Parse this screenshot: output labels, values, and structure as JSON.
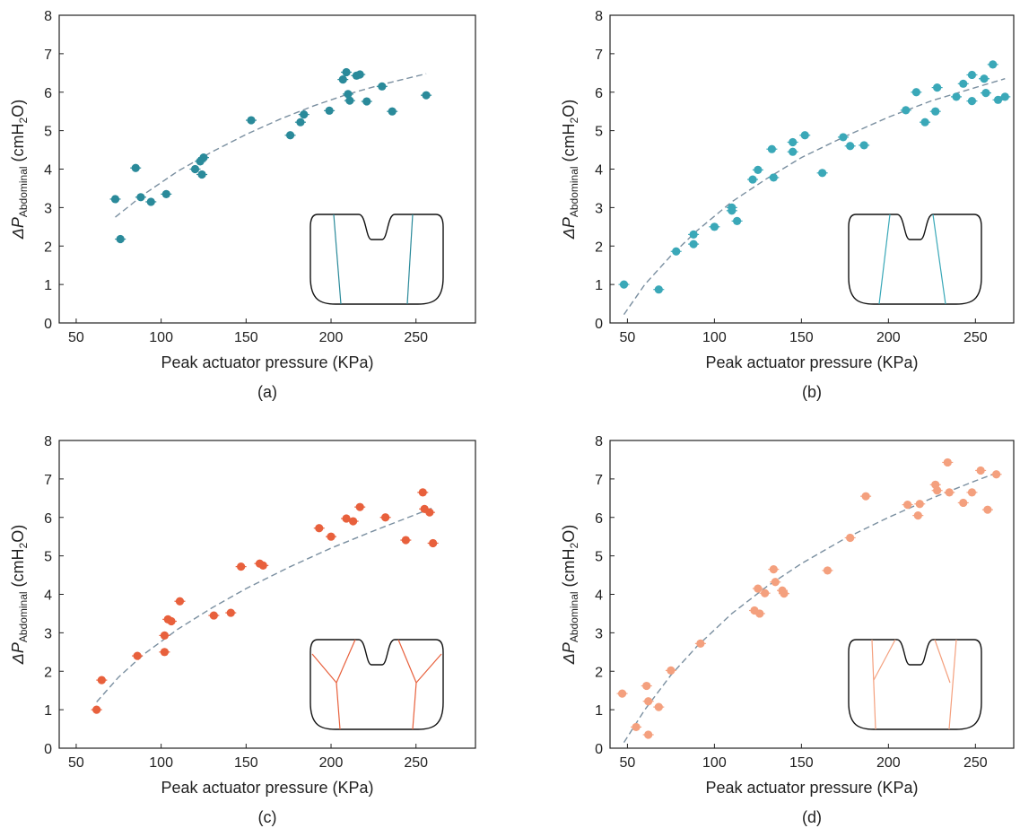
{
  "chart_data": [
    {
      "type": "scatter",
      "panel_label": "(a)",
      "xlabel": "Peak actuator pressure (KPa)",
      "ylabel": {
        "prefix": "ΔP",
        "subscript": "Abdominal",
        "unit_open": "(cmH",
        "unit_sub": "2",
        "unit_close": "O)"
      },
      "xlim": [
        40,
        285
      ],
      "ylim": [
        0,
        8
      ],
      "xticks": [
        50,
        100,
        150,
        200,
        250
      ],
      "yticks": [
        0,
        1,
        2,
        3,
        4,
        5,
        6,
        7,
        8
      ],
      "color": "#2a8a9a",
      "fit_color": "#7a8fa0",
      "fit": {
        "x": [
          73,
          90,
          110,
          130,
          150,
          170,
          190,
          210,
          230,
          256
        ],
        "y": [
          2.75,
          3.35,
          3.95,
          4.45,
          4.9,
          5.3,
          5.65,
          5.95,
          6.2,
          6.48
        ]
      },
      "points": [
        {
          "x": 73,
          "y": 3.22
        },
        {
          "x": 76,
          "y": 2.18
        },
        {
          "x": 85,
          "y": 4.03
        },
        {
          "x": 88,
          "y": 3.27
        },
        {
          "x": 94,
          "y": 3.15
        },
        {
          "x": 103,
          "y": 3.35
        },
        {
          "x": 120,
          "y": 4.0
        },
        {
          "x": 123,
          "y": 4.2
        },
        {
          "x": 124,
          "y": 3.86
        },
        {
          "x": 125,
          "y": 4.3
        },
        {
          "x": 153,
          "y": 5.27
        },
        {
          "x": 176,
          "y": 4.88
        },
        {
          "x": 182,
          "y": 5.22
        },
        {
          "x": 184,
          "y": 5.42
        },
        {
          "x": 199,
          "y": 5.52
        },
        {
          "x": 207,
          "y": 6.33
        },
        {
          "x": 209,
          "y": 6.52
        },
        {
          "x": 210,
          "y": 5.95
        },
        {
          "x": 211,
          "y": 5.78
        },
        {
          "x": 215,
          "y": 6.43
        },
        {
          "x": 217,
          "y": 6.46
        },
        {
          "x": 221,
          "y": 5.76
        },
        {
          "x": 230,
          "y": 6.15
        },
        {
          "x": 236,
          "y": 5.5
        },
        {
          "x": 256,
          "y": 5.92
        }
      ],
      "inset": "vertical-lines"
    },
    {
      "type": "scatter",
      "panel_label": "(b)",
      "xlabel": "Peak actuator pressure (KPa)",
      "ylabel": {
        "prefix": "ΔP",
        "subscript": "Abdominal",
        "unit_open": "(cmH",
        "unit_sub": "2",
        "unit_close": "O)"
      },
      "xlim": [
        40,
        272
      ],
      "ylim": [
        0,
        8
      ],
      "xticks": [
        50,
        100,
        150,
        200,
        250
      ],
      "yticks": [
        0,
        1,
        2,
        3,
        4,
        5,
        6,
        7,
        8
      ],
      "color": "#3aa8b8",
      "fit_color": "#7a8fa0",
      "fit": {
        "x": [
          48,
          60,
          75,
          90,
          110,
          130,
          150,
          175,
          200,
          225,
          250,
          267
        ],
        "y": [
          0.22,
          1.0,
          1.75,
          2.4,
          3.15,
          3.75,
          4.3,
          4.85,
          5.35,
          5.78,
          6.12,
          6.35
        ]
      },
      "points": [
        {
          "x": 48,
          "y": 1.0
        },
        {
          "x": 68,
          "y": 0.87
        },
        {
          "x": 78,
          "y": 1.86
        },
        {
          "x": 88,
          "y": 2.3
        },
        {
          "x": 88,
          "y": 2.05
        },
        {
          "x": 100,
          "y": 2.5
        },
        {
          "x": 110,
          "y": 3.0
        },
        {
          "x": 110,
          "y": 2.92
        },
        {
          "x": 113,
          "y": 2.65
        },
        {
          "x": 122,
          "y": 3.73
        },
        {
          "x": 125,
          "y": 3.98
        },
        {
          "x": 133,
          "y": 4.52
        },
        {
          "x": 134,
          "y": 3.78
        },
        {
          "x": 145,
          "y": 4.7
        },
        {
          "x": 145,
          "y": 4.45
        },
        {
          "x": 152,
          "y": 4.88
        },
        {
          "x": 162,
          "y": 3.9
        },
        {
          "x": 174,
          "y": 4.83
        },
        {
          "x": 178,
          "y": 4.6
        },
        {
          "x": 186,
          "y": 4.62
        },
        {
          "x": 210,
          "y": 5.53
        },
        {
          "x": 216,
          "y": 6.0
        },
        {
          "x": 221,
          "y": 5.22
        },
        {
          "x": 227,
          "y": 5.5
        },
        {
          "x": 228,
          "y": 6.12
        },
        {
          "x": 239,
          "y": 5.88
        },
        {
          "x": 243,
          "y": 6.22
        },
        {
          "x": 248,
          "y": 6.45
        },
        {
          "x": 248,
          "y": 5.77
        },
        {
          "x": 255,
          "y": 6.35
        },
        {
          "x": 256,
          "y": 5.98
        },
        {
          "x": 260,
          "y": 6.72
        },
        {
          "x": 263,
          "y": 5.8
        },
        {
          "x": 267,
          "y": 5.88
        }
      ],
      "inset": "tilted-lines"
    },
    {
      "type": "scatter",
      "panel_label": "(c)",
      "xlabel": "Peak actuator pressure (KPa)",
      "ylabel": {
        "prefix": "ΔP",
        "subscript": "Abdominal",
        "unit_open": "(cmH",
        "unit_sub": "2",
        "unit_close": "O)"
      },
      "xlim": [
        40,
        285
      ],
      "ylim": [
        0,
        8
      ],
      "xticks": [
        50,
        100,
        150,
        200,
        250
      ],
      "yticks": [
        0,
        1,
        2,
        3,
        4,
        5,
        6,
        7,
        8
      ],
      "color": "#e8603c",
      "fit_color": "#7a8fa0",
      "fit": {
        "x": [
          62,
          75,
          90,
          110,
          130,
          150,
          175,
          200,
          225,
          260
        ],
        "y": [
          1.2,
          1.85,
          2.45,
          3.1,
          3.65,
          4.15,
          4.7,
          5.2,
          5.65,
          6.25
        ]
      },
      "points": [
        {
          "x": 62,
          "y": 1.0
        },
        {
          "x": 65,
          "y": 1.77
        },
        {
          "x": 86,
          "y": 2.4
        },
        {
          "x": 102,
          "y": 2.5
        },
        {
          "x": 102,
          "y": 2.93
        },
        {
          "x": 104,
          "y": 3.35
        },
        {
          "x": 106,
          "y": 3.3
        },
        {
          "x": 111,
          "y": 3.82
        },
        {
          "x": 131,
          "y": 3.45
        },
        {
          "x": 141,
          "y": 3.52
        },
        {
          "x": 147,
          "y": 4.72
        },
        {
          "x": 158,
          "y": 4.8
        },
        {
          "x": 160,
          "y": 4.75
        },
        {
          "x": 193,
          "y": 5.72
        },
        {
          "x": 200,
          "y": 5.5
        },
        {
          "x": 209,
          "y": 5.97
        },
        {
          "x": 213,
          "y": 5.9
        },
        {
          "x": 217,
          "y": 6.27
        },
        {
          "x": 232,
          "y": 6.0
        },
        {
          "x": 244,
          "y": 5.41
        },
        {
          "x": 254,
          "y": 6.65
        },
        {
          "x": 255,
          "y": 6.22
        },
        {
          "x": 258,
          "y": 6.13
        },
        {
          "x": 260,
          "y": 5.33
        }
      ],
      "inset": "forked-lines"
    },
    {
      "type": "scatter",
      "panel_label": "(d)",
      "xlabel": "Peak actuator pressure (KPa)",
      "ylabel": {
        "prefix": "ΔP",
        "subscript": "Abdominal",
        "unit_open": "(cmH",
        "unit_sub": "2",
        "unit_close": "O)"
      },
      "xlim": [
        40,
        272
      ],
      "ylim": [
        0,
        8
      ],
      "xticks": [
        50,
        100,
        150,
        200,
        250
      ],
      "yticks": [
        0,
        1,
        2,
        3,
        4,
        5,
        6,
        7,
        8
      ],
      "color": "#f4a07e",
      "fit_color": "#7a8fa0",
      "fit": {
        "x": [
          48,
          60,
          75,
          90,
          110,
          130,
          150,
          175,
          200,
          225,
          250,
          262
        ],
        "y": [
          0.15,
          1.0,
          1.9,
          2.65,
          3.5,
          4.2,
          4.8,
          5.45,
          6.0,
          6.5,
          6.95,
          7.15
        ]
      },
      "points": [
        {
          "x": 47,
          "y": 1.42
        },
        {
          "x": 55,
          "y": 0.55
        },
        {
          "x": 61,
          "y": 1.62
        },
        {
          "x": 62,
          "y": 1.22
        },
        {
          "x": 62,
          "y": 0.35
        },
        {
          "x": 68,
          "y": 1.07
        },
        {
          "x": 75,
          "y": 2.02
        },
        {
          "x": 92,
          "y": 2.72
        },
        {
          "x": 123,
          "y": 3.58
        },
        {
          "x": 125,
          "y": 4.15
        },
        {
          "x": 126,
          "y": 3.5
        },
        {
          "x": 129,
          "y": 4.03
        },
        {
          "x": 134,
          "y": 4.65
        },
        {
          "x": 135,
          "y": 4.32
        },
        {
          "x": 139,
          "y": 4.1
        },
        {
          "x": 140,
          "y": 4.02
        },
        {
          "x": 165,
          "y": 4.62
        },
        {
          "x": 178,
          "y": 5.47
        },
        {
          "x": 187,
          "y": 6.55
        },
        {
          "x": 211,
          "y": 6.33
        },
        {
          "x": 217,
          "y": 6.05
        },
        {
          "x": 218,
          "y": 6.35
        },
        {
          "x": 227,
          "y": 6.85
        },
        {
          "x": 228,
          "y": 6.7
        },
        {
          "x": 234,
          "y": 7.43
        },
        {
          "x": 235,
          "y": 6.65
        },
        {
          "x": 243,
          "y": 6.38
        },
        {
          "x": 248,
          "y": 6.65
        },
        {
          "x": 253,
          "y": 7.22
        },
        {
          "x": 257,
          "y": 6.2
        },
        {
          "x": 262,
          "y": 7.12
        }
      ],
      "inset": "crossed-lines"
    }
  ]
}
